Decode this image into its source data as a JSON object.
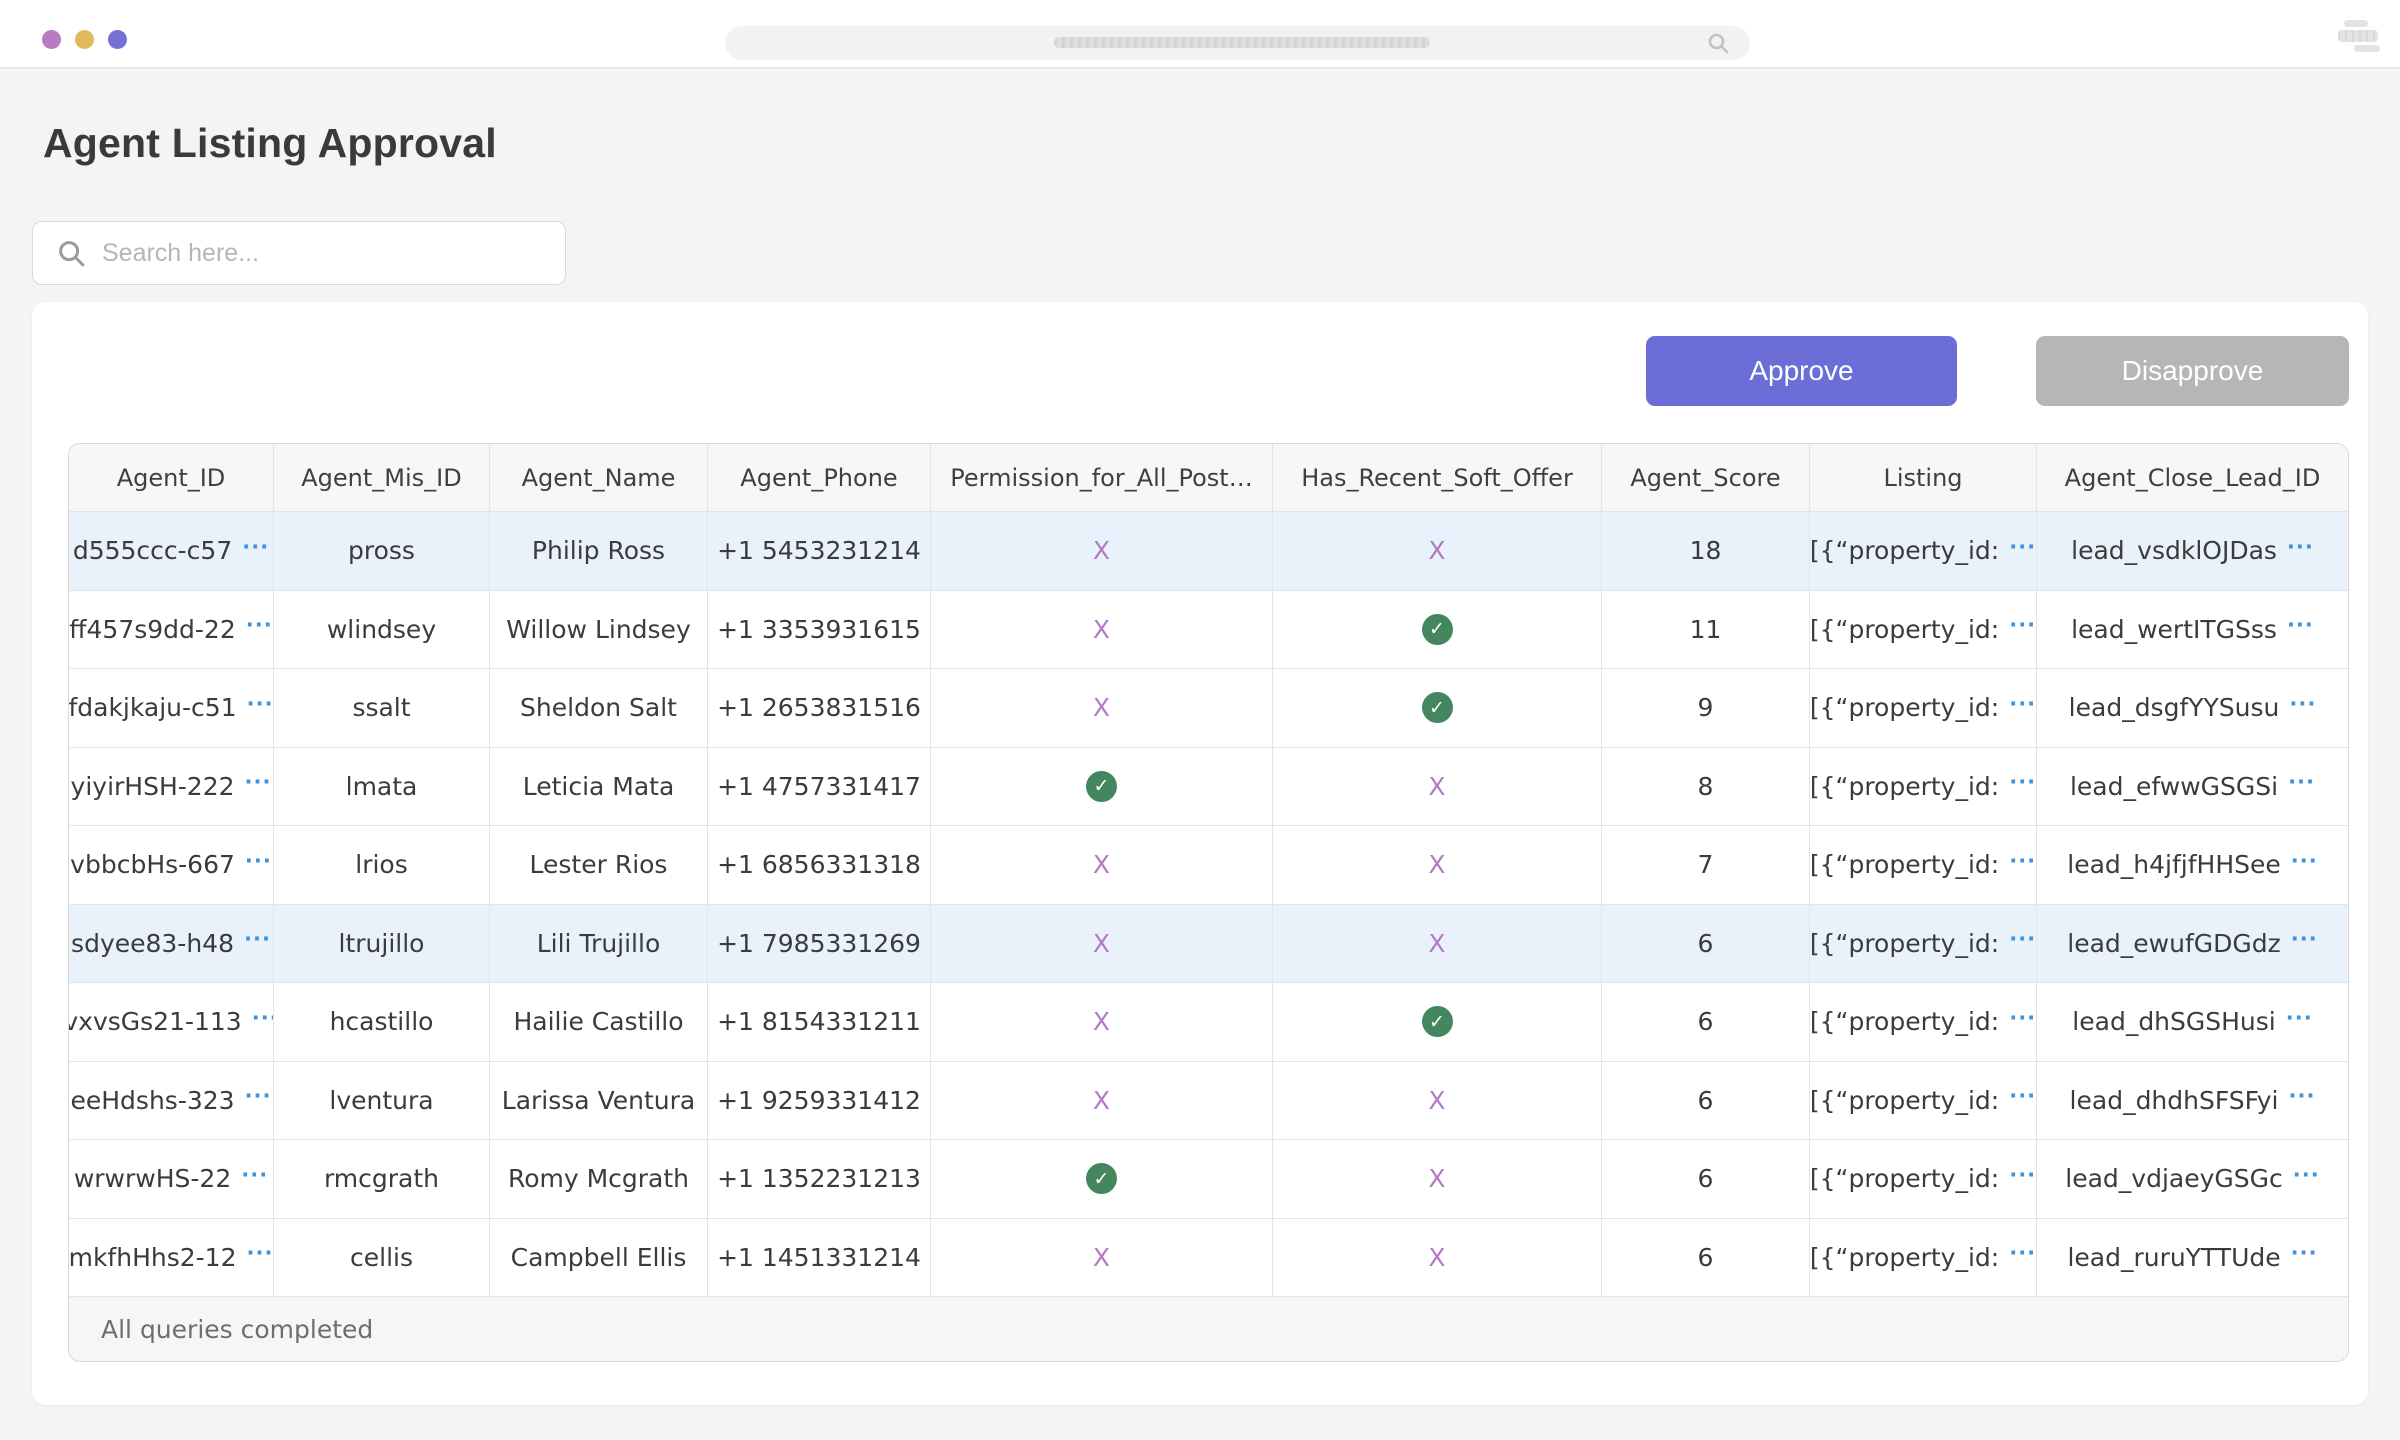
{
  "window": {
    "traffic_lights": [
      "#b77cc4",
      "#e3b95f",
      "#7470d6"
    ]
  },
  "page": {
    "title": "Agent Listing Approval"
  },
  "search": {
    "placeholder": "Search here..."
  },
  "actions": {
    "approve_label": "Approve",
    "disapprove_label": "Disapprove"
  },
  "table": {
    "columns": [
      {
        "key": "agent_id",
        "label": "Agent_ID"
      },
      {
        "key": "mis_id",
        "label": "Agent_Mis_ID"
      },
      {
        "key": "name",
        "label": "Agent_Name"
      },
      {
        "key": "phone",
        "label": "Agent_Phone"
      },
      {
        "key": "permission",
        "label": "Permission_for_All_Post…"
      },
      {
        "key": "soft_offer",
        "label": "Has_Recent_Soft_Offer"
      },
      {
        "key": "score",
        "label": "Agent_Score"
      },
      {
        "key": "listing",
        "label": "Listing"
      },
      {
        "key": "lead_id",
        "label": "Agent_Close_Lead_ID"
      }
    ],
    "marks": {
      "x": "X",
      "check": "✓",
      "ellipsis": "···"
    },
    "rows": [
      {
        "agent_id": "d555ccc-c57",
        "mis_id": "pross",
        "name": "Philip Ross",
        "phone": "+1 5453231214",
        "permission": "x",
        "soft_offer": "x",
        "score": "18",
        "listing": "[{“property_id:",
        "lead_id": "lead_vsdklOJDas",
        "selected": true
      },
      {
        "agent_id": "ff457s9dd-22",
        "mis_id": "wlindsey",
        "name": "Willow Lindsey",
        "phone": "+1 3353931615",
        "permission": "x",
        "soft_offer": "check",
        "score": "11",
        "listing": "[{“property_id:",
        "lead_id": "lead_wertITGSss",
        "selected": false
      },
      {
        "agent_id": "fdakjkaju-c51",
        "mis_id": "ssalt",
        "name": "Sheldon Salt",
        "phone": "+1 2653831516",
        "permission": "x",
        "soft_offer": "check",
        "score": "9",
        "listing": "[{“property_id:",
        "lead_id": "lead_dsgfYYSusu",
        "selected": false
      },
      {
        "agent_id": "yiyirHSH-222",
        "mis_id": "lmata",
        "name": "Leticia Mata",
        "phone": "+1 4757331417",
        "permission": "check",
        "soft_offer": "x",
        "score": "8",
        "listing": "[{“property_id:",
        "lead_id": "lead_efwwGSGSi",
        "selected": false
      },
      {
        "agent_id": "vbbcbHs-667",
        "mis_id": "lrios",
        "name": "Lester Rios",
        "phone": "+1 6856331318",
        "permission": "x",
        "soft_offer": "x",
        "score": "7",
        "listing": "[{“property_id:",
        "lead_id": "lead_h4jfjfHHSee",
        "selected": false
      },
      {
        "agent_id": "sdyee83-h48",
        "mis_id": "ltrujillo",
        "name": "Lili Trujillo",
        "phone": "+1 7985331269",
        "permission": "x",
        "soft_offer": "x",
        "score": "6",
        "listing": "[{“property_id:",
        "lead_id": "lead_ewufGDGdz",
        "selected": true
      },
      {
        "agent_id": "vxvsGs21-113",
        "mis_id": "hcastillo",
        "name": "Hailie Castillo",
        "phone": "+1 8154331211",
        "permission": "x",
        "soft_offer": "check",
        "score": "6",
        "listing": "[{“property_id:",
        "lead_id": "lead_dhSGSHusi",
        "selected": false
      },
      {
        "agent_id": "eeHdshs-323",
        "mis_id": "lventura",
        "name": "Larissa Ventura",
        "phone": "+1 9259331412",
        "permission": "x",
        "soft_offer": "x",
        "score": "6",
        "listing": "[{“property_id:",
        "lead_id": "lead_dhdhSFSFyi",
        "selected": false
      },
      {
        "agent_id": "wrwrwHS-22",
        "mis_id": "rmcgrath",
        "name": "Romy Mcgrath",
        "phone": "+1 1352231213",
        "permission": "check",
        "soft_offer": "x",
        "score": "6",
        "listing": "[{“property_id:",
        "lead_id": "lead_vdjaeyGSGc",
        "selected": false
      },
      {
        "agent_id": "mkfhHhs2-12",
        "mis_id": "cellis",
        "name": "Campbell Ellis",
        "phone": "+1 1451331214",
        "permission": "x",
        "soft_offer": "x",
        "score": "6",
        "listing": "[{“property_id:",
        "lead_id": "lead_ruruYTTUde",
        "selected": false
      }
    ],
    "footer": "All queries completed"
  },
  "colors": {
    "approve_button": "#6a6ed6",
    "disapprove_button": "#b6b6b6",
    "selected_row": "#e9f1fb",
    "x_mark": "#b279c4",
    "check_badge": "#44875e",
    "ellipsis_link": "#3f92dd",
    "header_bg": "#f7f7f8",
    "page_bg": "#f4f4f4"
  }
}
